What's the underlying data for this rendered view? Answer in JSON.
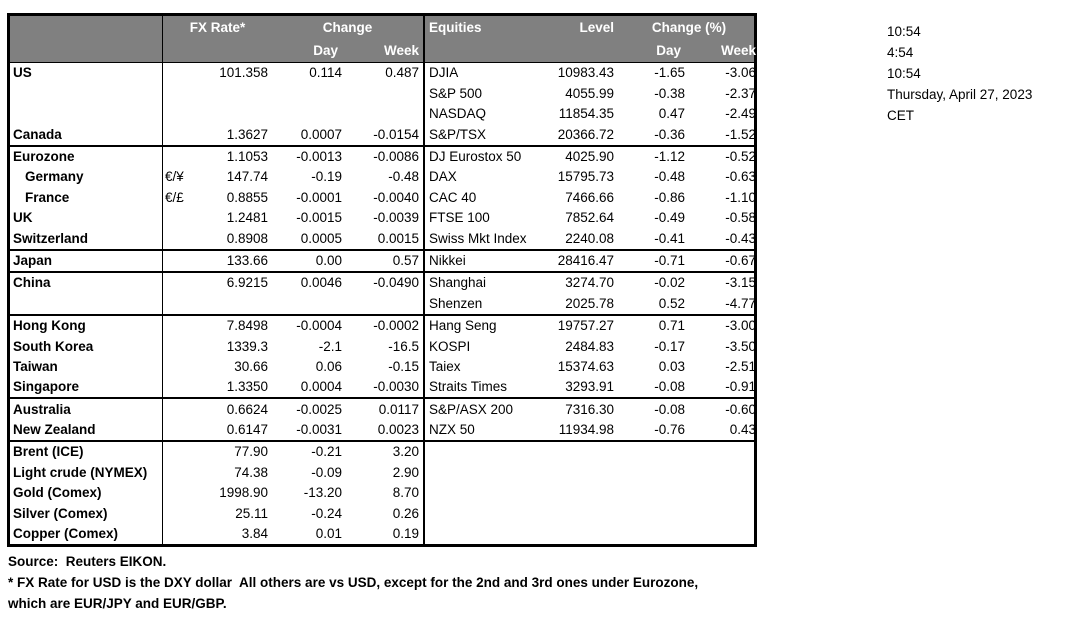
{
  "colors": {
    "header_bg": "#808080",
    "header_text": "#ffffff",
    "border": "#000000",
    "text": "#000000"
  },
  "table_header": {
    "fx_rate": "FX Rate*",
    "change": "Change",
    "day": "Day",
    "week": "Week",
    "equities": "Equities",
    "level": "Level",
    "change_pct": "Change (%)",
    "eq_day": "Day",
    "eq_week": "Week"
  },
  "table": {
    "sections": [
      {
        "rows": [
          {
            "country": "US",
            "pair": "",
            "fx": "101.358",
            "fx_day": "0.114",
            "fx_week": "0.487",
            "equity": "DJIA",
            "level": "10983.43",
            "eq_day": "-1.65",
            "eq_week": "-3.06"
          },
          {
            "country": "",
            "pair": "",
            "fx": "",
            "fx_day": "",
            "fx_week": "",
            "equity": "S&P 500",
            "level": "4055.99",
            "eq_day": "-0.38",
            "eq_week": "-2.37"
          },
          {
            "country": "",
            "pair": "",
            "fx": "",
            "fx_day": "",
            "fx_week": "",
            "equity": "NASDAQ",
            "level": "11854.35",
            "eq_day": "0.47",
            "eq_week": "-2.49"
          },
          {
            "country": "Canada",
            "pair": "",
            "fx": "1.3627",
            "fx_day": "0.0007",
            "fx_week": "-0.0154",
            "equity": "S&P/TSX",
            "level": "20366.72",
            "eq_day": "-0.36",
            "eq_week": "-1.52"
          }
        ]
      },
      {
        "rows": [
          {
            "country": "Eurozone",
            "pair": "",
            "fx": "1.1053",
            "fx_day": "-0.0013",
            "fx_week": "-0.0086",
            "equity": "DJ Eurostox 50",
            "level": "4025.90",
            "eq_day": "-1.12",
            "eq_week": "-0.52"
          },
          {
            "country": "Germany",
            "indent": true,
            "pair": "€/¥",
            "fx": "147.74",
            "fx_day": "-0.19",
            "fx_week": "-0.48",
            "equity": "DAX",
            "level": "15795.73",
            "eq_day": "-0.48",
            "eq_week": "-0.63"
          },
          {
            "country": "France",
            "indent": true,
            "pair": "€/£",
            "fx": "0.8855",
            "fx_day": "-0.0001",
            "fx_week": "-0.0040",
            "equity": "CAC 40",
            "level": "7466.66",
            "eq_day": "-0.86",
            "eq_week": "-1.10"
          },
          {
            "country": "UK",
            "pair": "",
            "fx": "1.2481",
            "fx_day": "-0.0015",
            "fx_week": "-0.0039",
            "equity": "FTSE 100",
            "level": "7852.64",
            "eq_day": "-0.49",
            "eq_week": "-0.58"
          },
          {
            "country": "Switzerland",
            "pair": "",
            "fx": "0.8908",
            "fx_day": "0.0005",
            "fx_week": "0.0015",
            "equity": "Swiss Mkt Index",
            "level": "2240.08",
            "eq_day": "-0.41",
            "eq_week": "-0.43"
          }
        ]
      },
      {
        "rows": [
          {
            "country": "Japan",
            "pair": "",
            "fx": "133.66",
            "fx_day": "0.00",
            "fx_week": "0.57",
            "equity": "Nikkei",
            "level": "28416.47",
            "eq_day": "-0.71",
            "eq_week": "-0.67"
          }
        ]
      },
      {
        "rows": [
          {
            "country": "China",
            "pair": "",
            "fx": "6.9215",
            "fx_day": "0.0046",
            "fx_week": "-0.0490",
            "equity": "Shanghai",
            "level": "3274.70",
            "eq_day": "-0.02",
            "eq_week": "-3.15"
          },
          {
            "country": "",
            "pair": "",
            "fx": "",
            "fx_day": "",
            "fx_week": "",
            "equity": "Shenzen",
            "level": "2025.78",
            "eq_day": "0.52",
            "eq_week": "-4.77"
          }
        ]
      },
      {
        "rows": [
          {
            "country": "Hong Kong",
            "pair": "",
            "fx": "7.8498",
            "fx_day": "-0.0004",
            "fx_week": "-0.0002",
            "equity": "Hang Seng",
            "level": "19757.27",
            "eq_day": "0.71",
            "eq_week": "-3.00"
          },
          {
            "country": "South Korea",
            "pair": "",
            "fx": "1339.3",
            "fx_day": "-2.1",
            "fx_week": "-16.5",
            "equity": "KOSPI",
            "level": "2484.83",
            "eq_day": "-0.17",
            "eq_week": "-3.50"
          },
          {
            "country": "Taiwan",
            "pair": "",
            "fx": "30.66",
            "fx_day": "0.06",
            "fx_week": "-0.15",
            "equity": "Taiex",
            "level": "15374.63",
            "eq_day": "0.03",
            "eq_week": "-2.51"
          },
          {
            "country": "Singapore",
            "pair": "",
            "fx": "1.3350",
            "fx_day": "0.0004",
            "fx_week": "-0.0030",
            "equity": "Straits Times",
            "level": "3293.91",
            "eq_day": "-0.08",
            "eq_week": "-0.91"
          }
        ]
      },
      {
        "rows": [
          {
            "country": "Australia",
            "pair": "",
            "fx": "0.6624",
            "fx_day": "-0.0025",
            "fx_week": "0.0117",
            "equity": "S&P/ASX  200",
            "level": "7316.30",
            "eq_day": "-0.08",
            "eq_week": "-0.60"
          },
          {
            "country": "New Zealand",
            "pair": "",
            "fx": "0.6147",
            "fx_day": "-0.0031",
            "fx_week": "0.0023",
            "equity": "NZX 50",
            "level": "11934.98",
            "eq_day": "-0.76",
            "eq_week": "0.43"
          }
        ]
      },
      {
        "rows": [
          {
            "country": "Brent (ICE)",
            "pair": "",
            "fx": "77.90",
            "fx_day": "-0.21",
            "fx_week": "3.20",
            "equity": "",
            "level": "",
            "eq_day": "",
            "eq_week": ""
          },
          {
            "country": "Light crude (NYMEX)",
            "pair": "",
            "fx": "74.38",
            "fx_day": "-0.09",
            "fx_week": "2.90",
            "equity": "",
            "level": "",
            "eq_day": "",
            "eq_week": ""
          },
          {
            "country": "Gold (Comex)",
            "pair": "",
            "fx": "1998.90",
            "fx_day": "-13.20",
            "fx_week": "8.70",
            "equity": "",
            "level": "",
            "eq_day": "",
            "eq_week": ""
          },
          {
            "country": "Silver (Comex)",
            "pair": "",
            "fx": "25.11",
            "fx_day": "-0.24",
            "fx_week": "0.26",
            "equity": "",
            "level": "",
            "eq_day": "",
            "eq_week": ""
          },
          {
            "country": "Copper (Comex)",
            "pair": "",
            "fx": "3.84",
            "fx_day": "0.01",
            "fx_week": "0.19",
            "equity": "",
            "level": "",
            "eq_day": "",
            "eq_week": ""
          }
        ]
      }
    ]
  },
  "info_panel": {
    "lines": [
      "10:54",
      "4:54",
      "10:54",
      "Thursday, April 27, 2023",
      "CET"
    ]
  },
  "footnotes": {
    "source": "Source:  Reuters EIKON.",
    "line1": "* FX Rate for USD is the DXY dollar  All others are vs USD, except for the 2nd and 3rd ones under Eurozone,",
    "line2": "which are EUR/JPY and EUR/GBP."
  }
}
